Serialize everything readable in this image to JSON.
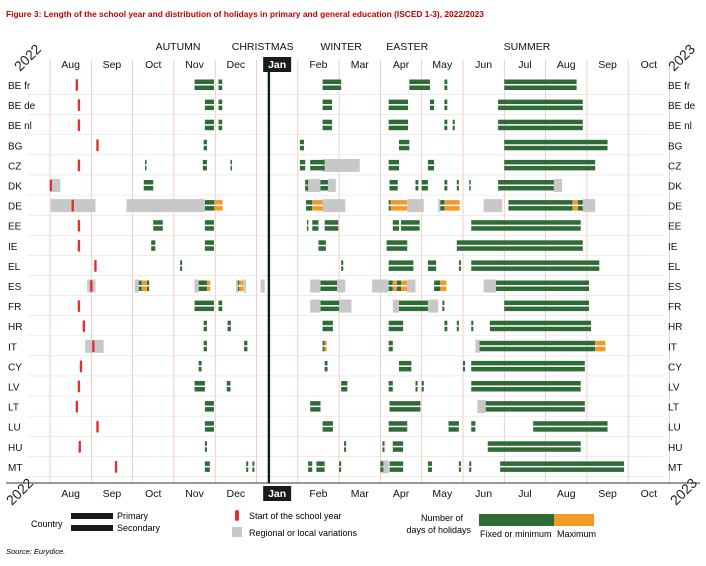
{
  "figure_title": "Figure 3: Length of the school year and distribution of holidays in primary and  general education (ISCED 1-3), 2022/2023",
  "source": "Source: Eurydice.",
  "years": {
    "left": "2022",
    "right": "2023"
  },
  "seasons": [
    "AUTUMN",
    "CHRISTMAS",
    "WINTER",
    "EASTER",
    "SUMMER"
  ],
  "months": [
    "Aug",
    "Sep",
    "Oct",
    "Nov",
    "Dec",
    "Jan",
    "Feb",
    "Mar",
    "Apr",
    "May",
    "Jun",
    "Jul",
    "Aug",
    "Sep",
    "Oct"
  ],
  "legend": {
    "country": "Country",
    "primary": "Primary",
    "secondary": "Secondary",
    "start": "Start of the school year",
    "regional": "Regional or local variations",
    "num_days": "Number of days of holidays",
    "fixed": "Fixed or minimum",
    "maximum": "Maximum"
  },
  "colors": {
    "fixed": "#2e6b37",
    "maximum": "#f39a27",
    "regional": "#c8c8c8",
    "start": "#e03030",
    "title": "#c00000",
    "grid": "#f0b8a8"
  },
  "chart_data": {
    "type": "timeline",
    "title": "Length of the school year and distribution of holidays in primary and general education (ISCED 1-3), 2022/2023",
    "x_unit": "month index (0 = start of Aug 2022)",
    "xlim": [
      0,
      15
    ],
    "countries": [
      {
        "code": "BE fr",
        "start": [
          0.65
        ],
        "fixed": [
          [
            3.5,
            3.97
          ],
          [
            4.08,
            4.17
          ],
          [
            6.6,
            7.05
          ],
          [
            8.7,
            9.2
          ],
          [
            9.55,
            9.62
          ],
          [
            11.0,
            12.75
          ]
        ],
        "max": [],
        "regional": []
      },
      {
        "code": "BE de",
        "start": [
          0.7
        ],
        "fixed": [
          [
            3.75,
            3.97
          ],
          [
            4.08,
            4.17
          ],
          [
            6.6,
            6.83
          ],
          [
            8.2,
            8.67
          ],
          [
            9.2,
            9.3
          ],
          [
            9.55,
            9.62
          ],
          [
            10.85,
            12.9
          ]
        ],
        "max": [],
        "regional": []
      },
      {
        "code": "BE nl",
        "start": [
          0.7
        ],
        "fixed": [
          [
            3.75,
            3.97
          ],
          [
            4.08,
            4.17
          ],
          [
            6.6,
            6.83
          ],
          [
            8.2,
            8.67
          ],
          [
            9.55,
            9.62
          ],
          [
            9.75,
            9.8
          ],
          [
            10.85,
            12.9
          ]
        ],
        "max": [],
        "regional": []
      },
      {
        "code": "BG",
        "start": [
          1.15
        ],
        "fixed": [
          [
            3.72,
            3.8
          ],
          [
            6.05,
            6.15
          ],
          [
            8.45,
            8.7
          ],
          [
            11.0,
            13.5
          ]
        ],
        "max": [],
        "regional": []
      },
      {
        "code": "CZ",
        "start": [
          0.7
        ],
        "fixed": [
          [
            2.3,
            2.33
          ],
          [
            3.7,
            3.8
          ],
          [
            4.37,
            4.4
          ],
          [
            6.05,
            6.18
          ],
          [
            6.3,
            6.65
          ],
          [
            8.2,
            8.45
          ],
          [
            9.15,
            9.3
          ],
          [
            11.0,
            13.2
          ]
        ],
        "max": [],
        "regional": [
          [
            6.6,
            7.5
          ]
        ]
      },
      {
        "code": "DK",
        "start": [
          0.02
        ],
        "fixed": [
          [
            2.27,
            2.5
          ],
          [
            6.18,
            6.25
          ],
          [
            6.55,
            6.73
          ],
          [
            8.22,
            8.42
          ],
          [
            8.85,
            8.92
          ],
          [
            9.0,
            9.15
          ],
          [
            9.55,
            9.62
          ],
          [
            9.85,
            9.9
          ],
          [
            10.15,
            10.18
          ],
          [
            10.85,
            12.2
          ]
        ],
        "max": [],
        "regional": [
          [
            0.02,
            0.25
          ],
          [
            6.18,
            6.55
          ],
          [
            6.73,
            6.92
          ],
          [
            12.2,
            12.4
          ]
        ]
      },
      {
        "code": "DE",
        "start": [
          0.55
        ],
        "fixed": [
          [
            3.75,
            3.98
          ],
          [
            6.2,
            6.35
          ],
          [
            8.2,
            8.25
          ],
          [
            9.45,
            9.55
          ],
          [
            11.1,
            12.65
          ],
          [
            12.78,
            12.9
          ]
        ],
        "max": [
          [
            3.98,
            4.18
          ],
          [
            6.35,
            6.6
          ],
          [
            8.25,
            8.65
          ],
          [
            9.55,
            9.92
          ],
          [
            12.65,
            12.78
          ]
        ],
        "regional": [
          [
            0.02,
            1.1
          ],
          [
            1.85,
            3.75
          ],
          [
            6.6,
            7.15
          ],
          [
            8.65,
            9.05
          ],
          [
            9.4,
            9.45
          ],
          [
            10.5,
            10.95
          ],
          [
            12.9,
            13.2
          ]
        ]
      },
      {
        "code": "EE",
        "start": [
          0.7
        ],
        "fixed": [
          [
            2.5,
            2.73
          ],
          [
            3.75,
            3.97
          ],
          [
            6.22,
            6.25
          ],
          [
            6.35,
            6.5
          ],
          [
            6.65,
            6.98
          ],
          [
            8.3,
            8.45
          ],
          [
            8.5,
            8.95
          ],
          [
            10.2,
            12.85
          ]
        ],
        "max": [],
        "regional": []
      },
      {
        "code": "IE",
        "start": [
          0.7
        ],
        "fixed": [
          [
            2.45,
            2.55
          ],
          [
            3.75,
            3.97
          ],
          [
            6.5,
            6.68
          ],
          [
            8.15,
            8.65
          ],
          [
            9.85,
            12.9
          ]
        ],
        "max": [],
        "regional": []
      },
      {
        "code": "EL",
        "start": [
          1.1
        ],
        "fixed": [
          [
            3.15,
            3.2
          ],
          [
            7.05,
            7.1
          ],
          [
            8.2,
            8.8
          ],
          [
            9.15,
            9.35
          ],
          [
            9.9,
            9.95
          ],
          [
            10.2,
            13.3
          ]
        ],
        "max": [],
        "regional": []
      },
      {
        "code": "ES",
        "start": [
          1.0
        ],
        "fixed": [
          [
            2.15,
            2.22
          ],
          [
            2.35,
            2.4
          ],
          [
            3.6,
            3.8
          ],
          [
            4.55,
            4.58
          ],
          [
            6.55,
            6.95
          ],
          [
            8.2,
            8.3
          ],
          [
            8.4,
            8.5
          ],
          [
            9.3,
            9.45
          ],
          [
            10.8,
            13.05
          ]
        ],
        "max": [
          [
            2.22,
            2.35
          ],
          [
            3.8,
            3.88
          ],
          [
            4.58,
            4.68
          ],
          [
            8.3,
            8.4
          ],
          [
            8.5,
            8.65
          ],
          [
            9.45,
            9.6
          ]
        ],
        "regional": [
          [
            0.9,
            1.1
          ],
          [
            2.05,
            2.15
          ],
          [
            3.5,
            3.6
          ],
          [
            4.5,
            4.55
          ],
          [
            4.68,
            4.75
          ],
          [
            5.1,
            5.2
          ],
          [
            6.3,
            6.55
          ],
          [
            6.95,
            7.15
          ],
          [
            7.8,
            8.2
          ],
          [
            8.65,
            8.85
          ],
          [
            10.5,
            10.8
          ]
        ]
      },
      {
        "code": "FR",
        "start": [
          0.7
        ],
        "fixed": [
          [
            3.5,
            3.97
          ],
          [
            4.08,
            4.17
          ],
          [
            6.55,
            7.0
          ],
          [
            8.45,
            9.15
          ],
          [
            9.5,
            9.55
          ],
          [
            11.0,
            13.05
          ]
        ],
        "max": [],
        "regional": [
          [
            6.3,
            6.55
          ],
          [
            7.0,
            7.3
          ],
          [
            8.3,
            8.45
          ],
          [
            9.15,
            9.4
          ]
        ]
      },
      {
        "code": "HR",
        "start": [
          0.82
        ],
        "fixed": [
          [
            3.72,
            3.8
          ],
          [
            4.3,
            4.38
          ],
          [
            6.6,
            6.85
          ],
          [
            8.2,
            8.55
          ],
          [
            9.55,
            9.62
          ],
          [
            9.85,
            9.9
          ],
          [
            10.2,
            10.25
          ],
          [
            10.65,
            13.1
          ]
        ],
        "max": [],
        "regional": []
      },
      {
        "code": "IT",
        "start": [
          1.05
        ],
        "fixed": [
          [
            3.72,
            3.8
          ],
          [
            4.7,
            4.78
          ],
          [
            6.6,
            6.65
          ],
          [
            8.2,
            8.3
          ],
          [
            10.4,
            13.2
          ]
        ],
        "max": [
          [
            6.65,
            6.7
          ],
          [
            13.2,
            13.45
          ]
        ],
        "regional": [
          [
            0.85,
            1.3
          ],
          [
            10.3,
            10.4
          ]
        ]
      },
      {
        "code": "CY",
        "start": [
          0.75
        ],
        "fixed": [
          [
            3.6,
            3.67
          ],
          [
            6.65,
            6.72
          ],
          [
            8.45,
            8.75
          ],
          [
            10.0,
            10.05
          ],
          [
            10.2,
            12.95
          ]
        ],
        "max": [],
        "regional": []
      },
      {
        "code": "LV",
        "start": [
          0.7
        ],
        "fixed": [
          [
            3.5,
            3.75
          ],
          [
            4.28,
            4.37
          ],
          [
            7.05,
            7.2
          ],
          [
            8.2,
            8.3
          ],
          [
            8.85,
            8.9
          ],
          [
            9.0,
            9.05
          ],
          [
            10.2,
            12.85
          ]
        ],
        "max": [],
        "regional": []
      },
      {
        "code": "LT",
        "start": [
          0.65
        ],
        "fixed": [
          [
            3.75,
            3.97
          ],
          [
            6.3,
            6.55
          ],
          [
            8.22,
            8.97
          ],
          [
            10.55,
            12.95
          ]
        ],
        "max": [],
        "regional": [
          [
            10.35,
            10.55
          ]
        ]
      },
      {
        "code": "LU",
        "start": [
          1.15
        ],
        "fixed": [
          [
            3.75,
            3.97
          ],
          [
            6.6,
            6.85
          ],
          [
            8.2,
            8.65
          ],
          [
            9.65,
            9.9
          ],
          [
            10.2,
            10.3
          ],
          [
            11.7,
            13.5
          ]
        ],
        "max": [],
        "regional": []
      },
      {
        "code": "HU",
        "start": [
          0.72
        ],
        "fixed": [
          [
            3.75,
            3.8
          ],
          [
            7.12,
            7.17
          ],
          [
            8.05,
            8.1
          ],
          [
            8.3,
            8.55
          ],
          [
            10.6,
            12.85
          ]
        ],
        "max": [],
        "regional": []
      },
      {
        "code": "MT",
        "start": [
          1.6
        ],
        "fixed": [
          [
            3.75,
            3.87
          ],
          [
            4.75,
            4.8
          ],
          [
            4.9,
            4.95
          ],
          [
            6.25,
            6.35
          ],
          [
            6.45,
            6.65
          ],
          [
            7.0,
            7.05
          ],
          [
            8.0,
            8.07
          ],
          [
            8.22,
            8.55
          ],
          [
            9.15,
            9.25
          ],
          [
            9.9,
            9.95
          ],
          [
            10.15,
            10.2
          ],
          [
            10.9,
            13.9
          ]
        ],
        "max": [],
        "regional": [
          [
            8.0,
            8.2
          ]
        ]
      }
    ]
  }
}
